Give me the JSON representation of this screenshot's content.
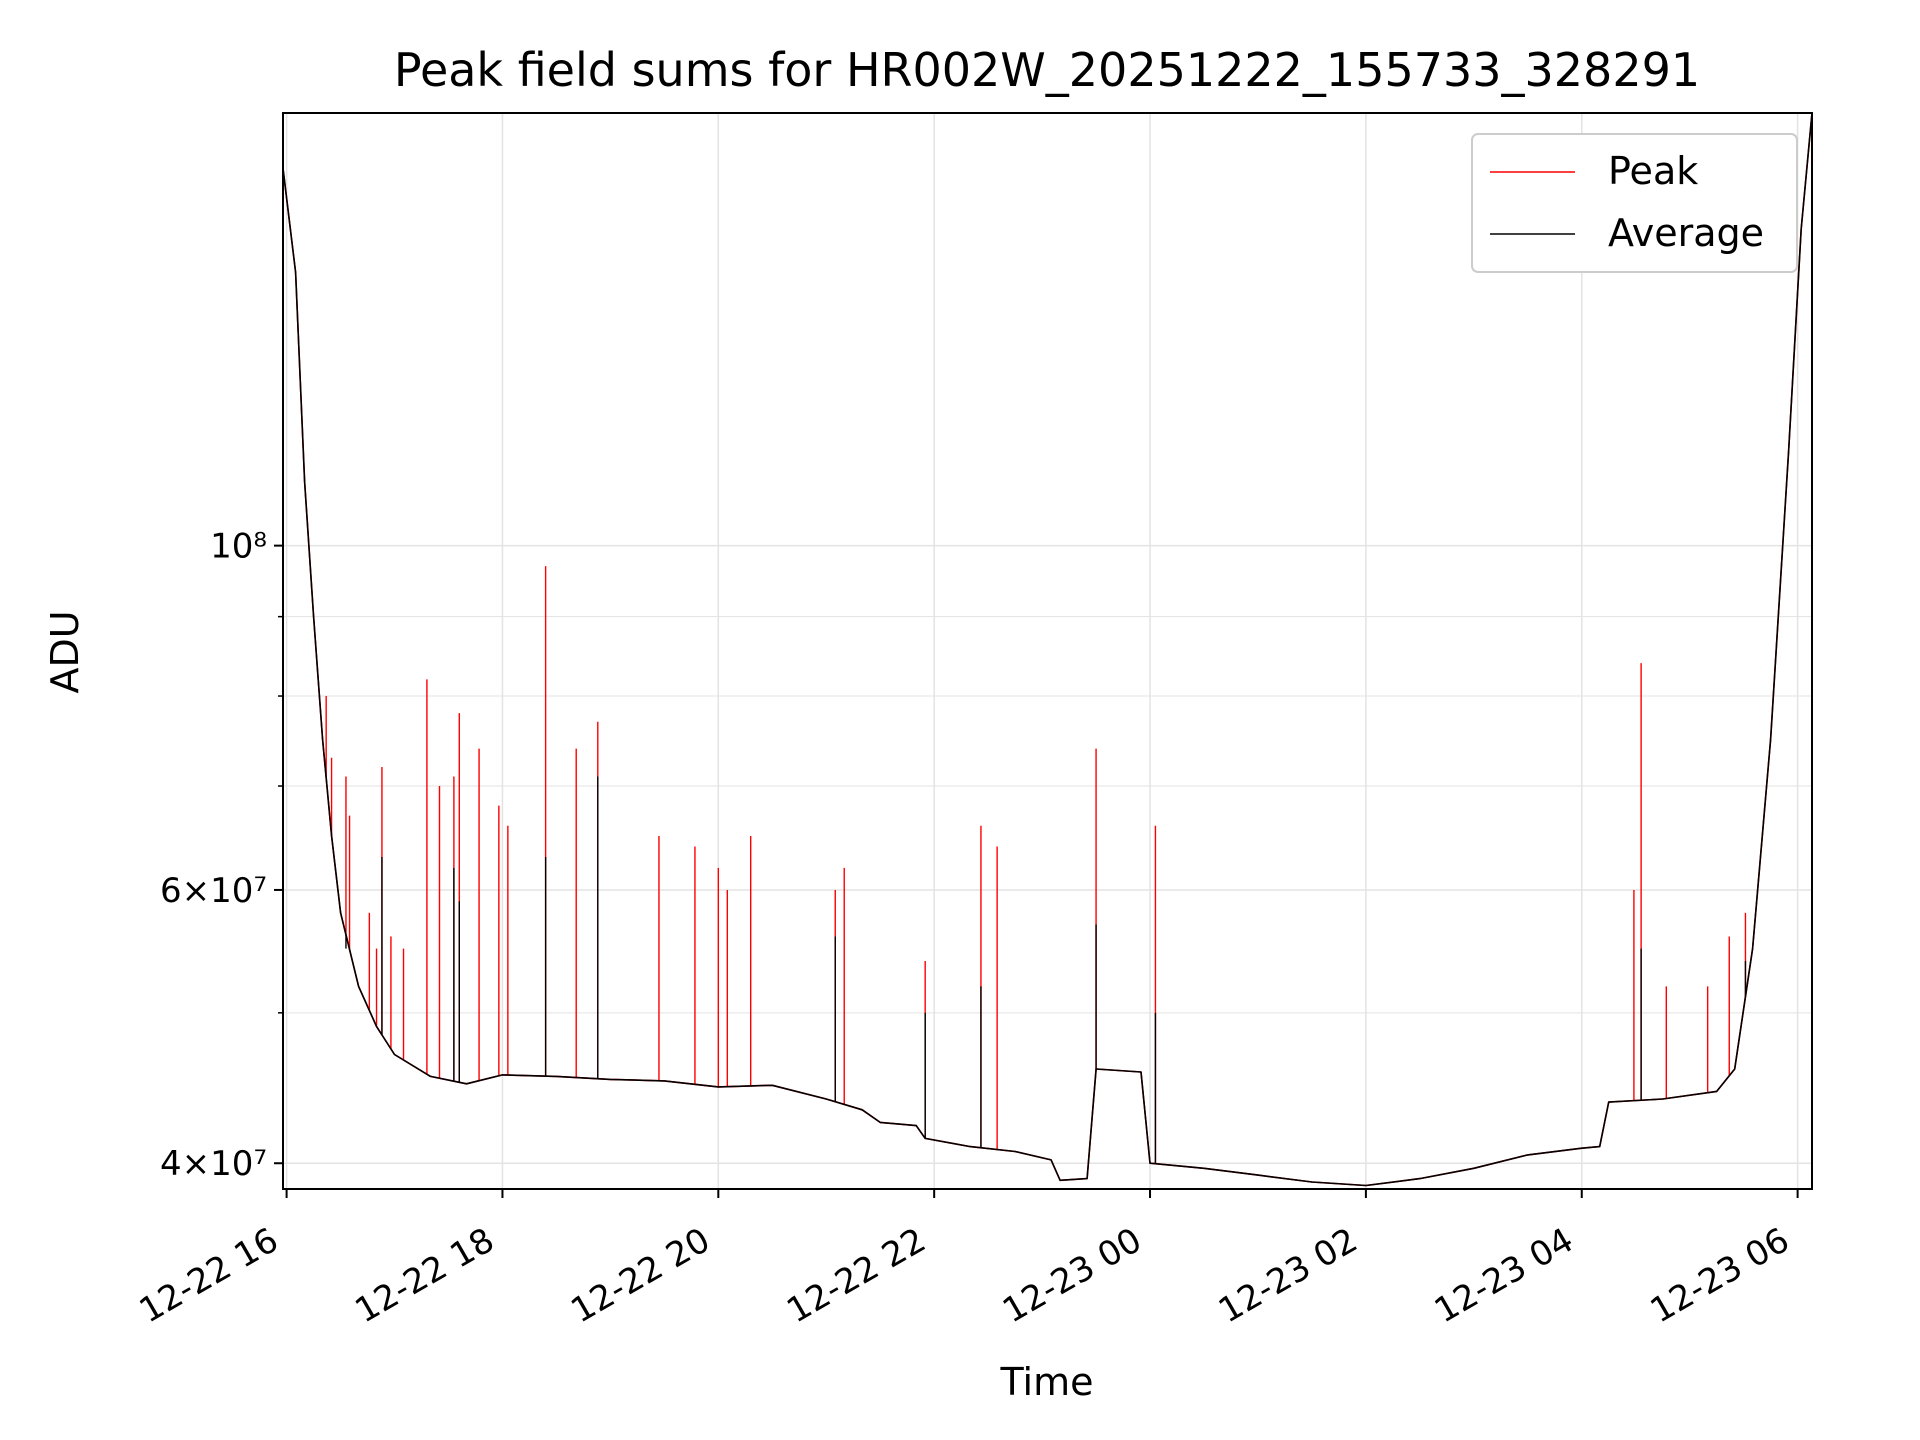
{
  "chart_data": {
    "type": "line",
    "title": "Peak field sums for HR002W_20251222_155733_328291",
    "xlabel": "Time",
    "ylabel": "ADU",
    "y_scale": "log",
    "xlim": [
      "2025-12-22 15:58",
      "2025-12-23 06:08"
    ],
    "ylim": [
      38500000,
      190000000
    ],
    "x_ticks": [
      "12-22 16",
      "12-22 18",
      "12-22 20",
      "12-22 22",
      "12-23 00",
      "12-23 02",
      "12-23 04",
      "12-23 06"
    ],
    "y_ticks": [
      {
        "value": 40000000,
        "label": "4×10⁷"
      },
      {
        "value": 60000000,
        "label": "6×10⁷"
      },
      {
        "value": 100000000,
        "label": "10⁸"
      }
    ],
    "grid": true,
    "legend_position": "top-right",
    "colors": {
      "peak": "#ff0000",
      "average": "#000000",
      "grid": "#e3e3e3"
    },
    "series": [
      {
        "name": "Peak",
        "color": "#ff0000",
        "points": [
          [
            "2025-12-22 15:58",
            175000000
          ],
          [
            "2025-12-22 16:05",
            150000000
          ],
          [
            "2025-12-22 16:10",
            110000000
          ],
          [
            "2025-12-22 16:15",
            90000000
          ],
          [
            "2025-12-22 16:20",
            75000000
          ],
          [
            "2025-12-22 16:25",
            65000000
          ],
          [
            "2025-12-22 16:30",
            58000000
          ],
          [
            "2025-12-22 16:40",
            52000000
          ],
          [
            "2025-12-22 16:50",
            49000000
          ],
          [
            "2025-12-22 17:00",
            47000000
          ],
          [
            "2025-12-22 17:20",
            45500000
          ],
          [
            "2025-12-22 17:40",
            45000000
          ],
          [
            "2025-12-22 18:00",
            45600000
          ],
          [
            "2025-12-22 18:30",
            45500000
          ],
          [
            "2025-12-22 19:00",
            45300000
          ],
          [
            "2025-12-22 19:30",
            45200000
          ],
          [
            "2025-12-22 20:00",
            44800000
          ],
          [
            "2025-12-22 20:30",
            44900000
          ],
          [
            "2025-12-22 21:00",
            44000000
          ],
          [
            "2025-12-22 21:20",
            43300000
          ],
          [
            "2025-12-22 21:30",
            42500000
          ],
          [
            "2025-12-22 21:50",
            42300000
          ],
          [
            "2025-12-22 21:55",
            41500000
          ],
          [
            "2025-12-22 22:20",
            41000000
          ],
          [
            "2025-12-22 22:45",
            40700000
          ],
          [
            "2025-12-22 23:05",
            40200000
          ],
          [
            "2025-12-22 23:10",
            39000000
          ],
          [
            "2025-12-22 23:25",
            39100000
          ],
          [
            "2025-12-22 23:30",
            46000000
          ],
          [
            "2025-12-22 23:55",
            45800000
          ],
          [
            "2025-12-23 00:00",
            40000000
          ],
          [
            "2025-12-23 00:30",
            39700000
          ],
          [
            "2025-12-23 01:00",
            39300000
          ],
          [
            "2025-12-23 01:30",
            38900000
          ],
          [
            "2025-12-23 02:00",
            38700000
          ],
          [
            "2025-12-23 02:30",
            39100000
          ],
          [
            "2025-12-23 03:00",
            39700000
          ],
          [
            "2025-12-23 03:30",
            40500000
          ],
          [
            "2025-12-23 04:00",
            40900000
          ],
          [
            "2025-12-23 04:10",
            41000000
          ],
          [
            "2025-12-23 04:15",
            43800000
          ],
          [
            "2025-12-23 04:45",
            44000000
          ],
          [
            "2025-12-23 05:15",
            44500000
          ],
          [
            "2025-12-23 05:25",
            46000000
          ],
          [
            "2025-12-23 05:35",
            55000000
          ],
          [
            "2025-12-23 05:45",
            75000000
          ],
          [
            "2025-12-23 05:55",
            115000000
          ],
          [
            "2025-12-23 06:02",
            160000000
          ],
          [
            "2025-12-23 06:08",
            190000000
          ]
        ],
        "spikes": [
          [
            "2025-12-22 16:22",
            80000000
          ],
          [
            "2025-12-22 16:25",
            73000000
          ],
          [
            "2025-12-22 16:33",
            71000000
          ],
          [
            "2025-12-22 16:35",
            67000000
          ],
          [
            "2025-12-22 16:46",
            58000000
          ],
          [
            "2025-12-22 16:50",
            55000000
          ],
          [
            "2025-12-22 16:53",
            72000000
          ],
          [
            "2025-12-22 16:58",
            56000000
          ],
          [
            "2025-12-22 17:05",
            55000000
          ],
          [
            "2025-12-22 17:18",
            82000000
          ],
          [
            "2025-12-22 17:25",
            70000000
          ],
          [
            "2025-12-22 17:33",
            71000000
          ],
          [
            "2025-12-22 17:36",
            78000000
          ],
          [
            "2025-12-22 17:47",
            74000000
          ],
          [
            "2025-12-22 17:58",
            68000000
          ],
          [
            "2025-12-22 18:03",
            66000000
          ],
          [
            "2025-12-22 18:24",
            97000000
          ],
          [
            "2025-12-22 18:41",
            74000000
          ],
          [
            "2025-12-22 18:53",
            77000000
          ],
          [
            "2025-12-22 19:27",
            65000000
          ],
          [
            "2025-12-22 19:47",
            64000000
          ],
          [
            "2025-12-22 20:00",
            62000000
          ],
          [
            "2025-12-22 20:05",
            60000000
          ],
          [
            "2025-12-22 20:18",
            65000000
          ],
          [
            "2025-12-22 21:05",
            60000000
          ],
          [
            "2025-12-22 21:10",
            62000000
          ],
          [
            "2025-12-22 21:55",
            54000000
          ],
          [
            "2025-12-22 22:26",
            66000000
          ],
          [
            "2025-12-22 22:35",
            64000000
          ],
          [
            "2025-12-22 23:30",
            74000000
          ],
          [
            "2025-12-23 00:03",
            66000000
          ],
          [
            "2025-12-23 04:33",
            84000000
          ],
          [
            "2025-12-23 04:29",
            60000000
          ],
          [
            "2025-12-23 04:47",
            52000000
          ],
          [
            "2025-12-23 05:10",
            52000000
          ],
          [
            "2025-12-23 05:22",
            56000000
          ],
          [
            "2025-12-23 05:31",
            58000000
          ]
        ]
      },
      {
        "name": "Average",
        "color": "#000000",
        "points": [
          [
            "2025-12-22 15:58",
            175000000
          ],
          [
            "2025-12-22 16:05",
            150000000
          ],
          [
            "2025-12-22 16:10",
            110000000
          ],
          [
            "2025-12-22 16:15",
            90000000
          ],
          [
            "2025-12-22 16:20",
            75000000
          ],
          [
            "2025-12-22 16:25",
            65000000
          ],
          [
            "2025-12-22 16:30",
            58000000
          ],
          [
            "2025-12-22 16:40",
            52000000
          ],
          [
            "2025-12-22 16:50",
            49000000
          ],
          [
            "2025-12-22 17:00",
            47000000
          ],
          [
            "2025-12-22 17:20",
            45500000
          ],
          [
            "2025-12-22 17:40",
            45000000
          ],
          [
            "2025-12-22 18:00",
            45600000
          ],
          [
            "2025-12-22 18:30",
            45500000
          ],
          [
            "2025-12-22 19:00",
            45300000
          ],
          [
            "2025-12-22 19:30",
            45200000
          ],
          [
            "2025-12-22 20:00",
            44800000
          ],
          [
            "2025-12-22 20:30",
            44900000
          ],
          [
            "2025-12-22 21:00",
            44000000
          ],
          [
            "2025-12-22 21:20",
            43300000
          ],
          [
            "2025-12-22 21:30",
            42500000
          ],
          [
            "2025-12-22 21:50",
            42300000
          ],
          [
            "2025-12-22 21:55",
            41500000
          ],
          [
            "2025-12-22 22:20",
            41000000
          ],
          [
            "2025-12-22 22:45",
            40700000
          ],
          [
            "2025-12-22 23:05",
            40200000
          ],
          [
            "2025-12-22 23:10",
            39000000
          ],
          [
            "2025-12-22 23:25",
            39100000
          ],
          [
            "2025-12-22 23:30",
            46000000
          ],
          [
            "2025-12-22 23:55",
            45800000
          ],
          [
            "2025-12-23 00:00",
            40000000
          ],
          [
            "2025-12-23 00:30",
            39700000
          ],
          [
            "2025-12-23 01:00",
            39300000
          ],
          [
            "2025-12-23 01:30",
            38900000
          ],
          [
            "2025-12-23 02:00",
            38700000
          ],
          [
            "2025-12-23 02:30",
            39100000
          ],
          [
            "2025-12-23 03:00",
            39700000
          ],
          [
            "2025-12-23 03:30",
            40500000
          ],
          [
            "2025-12-23 04:00",
            40900000
          ],
          [
            "2025-12-23 04:10",
            41000000
          ],
          [
            "2025-12-23 04:15",
            43800000
          ],
          [
            "2025-12-23 04:45",
            44000000
          ],
          [
            "2025-12-23 05:15",
            44500000
          ],
          [
            "2025-12-23 05:25",
            46000000
          ],
          [
            "2025-12-23 05:35",
            55000000
          ],
          [
            "2025-12-23 05:45",
            75000000
          ],
          [
            "2025-12-23 05:55",
            115000000
          ],
          [
            "2025-12-23 06:02",
            160000000
          ],
          [
            "2025-12-23 06:08",
            190000000
          ]
        ],
        "spikes": [
          [
            "2025-12-22 16:33",
            55000000
          ],
          [
            "2025-12-22 16:53",
            63000000
          ],
          [
            "2025-12-22 17:33",
            62000000
          ],
          [
            "2025-12-22 17:36",
            59000000
          ],
          [
            "2025-12-22 18:24",
            63000000
          ],
          [
            "2025-12-22 18:53",
            71000000
          ],
          [
            "2025-12-22 21:05",
            56000000
          ],
          [
            "2025-12-22 21:55",
            50000000
          ],
          [
            "2025-12-22 22:26",
            52000000
          ],
          [
            "2025-12-22 23:30",
            57000000
          ],
          [
            "2025-12-23 00:03",
            50000000
          ],
          [
            "2025-12-23 04:33",
            55000000
          ],
          [
            "2025-12-23 05:31",
            54000000
          ]
        ]
      }
    ]
  }
}
